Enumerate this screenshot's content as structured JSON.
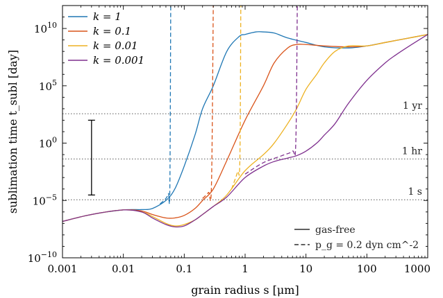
{
  "chart_data": {
    "type": "line",
    "xlabel": "grain radius s [μm]",
    "ylabel": "sublimation time t_subl [day]",
    "x_scale": "log",
    "y_scale": "log",
    "xlim": [
      0.001,
      1000
    ],
    "ylim": [
      1e-10,
      1000000000000.0
    ],
    "x_ticks": [
      {
        "v": 0.001,
        "label": "0.001"
      },
      {
        "v": 0.01,
        "label": "0.01"
      },
      {
        "v": 0.1,
        "label": "0.1"
      },
      {
        "v": 1,
        "label": "1"
      },
      {
        "v": 10,
        "label": "10"
      },
      {
        "v": 100,
        "label": "100"
      },
      {
        "v": 1000,
        "label": "1000"
      }
    ],
    "y_ticks": [
      {
        "v": 1e-10,
        "base": "10",
        "exp": "−10"
      },
      {
        "v": 1e-05,
        "base": "10",
        "exp": "−5"
      },
      {
        "v": 1,
        "base": "10",
        "exp": "0"
      },
      {
        "v": 100000.0,
        "base": "10",
        "exp": "5"
      },
      {
        "v": 10000000000.0,
        "base": "10",
        "exp": "10"
      }
    ],
    "reference_lines": [
      {
        "label": "1 yr",
        "y": 365
      },
      {
        "label": "1 hr",
        "y": 0.04167
      },
      {
        "label": "1 s",
        "y": 1.157e-05
      }
    ],
    "error_bar": {
      "x": 0.003,
      "y_low": 3e-05,
      "y_high": 100.0
    },
    "series": [
      {
        "name": "k = 1",
        "color": "#1f77b4",
        "gas_free": [
          [
            0.001,
            1.5e-07
          ],
          [
            0.003,
            6e-07
          ],
          [
            0.01,
            1.5e-06
          ],
          [
            0.02,
            1.6e-06
          ],
          [
            0.03,
            2e-06
          ],
          [
            0.05,
            1e-05
          ],
          [
            0.07,
            0.0001
          ],
          [
            0.1,
            0.01
          ],
          [
            0.15,
            5
          ],
          [
            0.2,
            1000.0
          ],
          [
            0.3,
            100000.0
          ],
          [
            0.5,
            100000000.0
          ],
          [
            0.8,
            2000000000.0
          ],
          [
            1,
            3000000000.0
          ],
          [
            1.5,
            5000000000.0
          ],
          [
            2,
            5000000000.0
          ],
          [
            3,
            4000000000.0
          ],
          [
            5,
            1500000000.0
          ],
          [
            10,
            600000000.0
          ],
          [
            20,
            250000000.0
          ],
          [
            50,
            200000000.0
          ],
          [
            100,
            300000000.0
          ],
          [
            200,
            600000000.0
          ],
          [
            500,
            1500000000.0
          ],
          [
            1000,
            3000000000.0
          ]
        ],
        "gas": [
          [
            0.04,
            5e-06
          ],
          [
            0.05,
            1.5e-05
          ],
          [
            0.055,
            4e-05
          ],
          [
            0.058,
            0.0001
          ],
          [
            0.06,
            1000000000000.0
          ]
        ]
      },
      {
        "name": "k = 0.1",
        "color": "#d95319",
        "gas_free": [
          [
            0.001,
            1.5e-07
          ],
          [
            0.003,
            6e-07
          ],
          [
            0.01,
            1.5e-06
          ],
          [
            0.02,
            1.2e-06
          ],
          [
            0.03,
            6e-07
          ],
          [
            0.05,
            3e-07
          ],
          [
            0.07,
            3e-07
          ],
          [
            0.1,
            5e-07
          ],
          [
            0.15,
            2e-06
          ],
          [
            0.2,
            1e-05
          ],
          [
            0.3,
            0.0001
          ],
          [
            0.5,
            0.03
          ],
          [
            1,
            100.0
          ],
          [
            2,
            100000.0
          ],
          [
            3,
            10000000.0
          ],
          [
            5,
            200000000.0
          ],
          [
            7,
            400000000.0
          ],
          [
            10,
            400000000.0
          ],
          [
            20,
            300000000.0
          ],
          [
            50,
            250000000.0
          ],
          [
            100,
            300000000.0
          ],
          [
            200,
            600000000.0
          ],
          [
            500,
            1500000000.0
          ],
          [
            1000,
            3000000000.0
          ]
        ],
        "gas": [
          [
            0.2,
            1.5e-05
          ],
          [
            0.25,
            5e-05
          ],
          [
            0.28,
            0.0002
          ],
          [
            0.3,
            1000000000000.0
          ]
        ]
      },
      {
        "name": "k = 0.01",
        "color": "#edb120",
        "gas_free": [
          [
            0.001,
            1.5e-07
          ],
          [
            0.003,
            6e-07
          ],
          [
            0.01,
            1.5e-06
          ],
          [
            0.02,
            1e-06
          ],
          [
            0.03,
            4e-07
          ],
          [
            0.05,
            1e-07
          ],
          [
            0.07,
            6e-08
          ],
          [
            0.1,
            8e-08
          ],
          [
            0.15,
            2e-07
          ],
          [
            0.2,
            6e-07
          ],
          [
            0.3,
            3e-06
          ],
          [
            0.5,
            3e-05
          ],
          [
            1,
            0.004
          ],
          [
            2,
            0.1
          ],
          [
            3,
            1
          ],
          [
            5,
            50
          ],
          [
            7,
            1000.0
          ],
          [
            10,
            50000.0
          ],
          [
            15,
            1000000.0
          ],
          [
            20,
            10000000.0
          ],
          [
            30,
            100000000.0
          ],
          [
            50,
            300000000.0
          ],
          [
            100,
            300000000.0
          ],
          [
            200,
            600000000.0
          ],
          [
            500,
            1500000000.0
          ],
          [
            1000,
            3000000000.0
          ]
        ],
        "gas": [
          [
            0.6,
            0.0001
          ],
          [
            0.75,
            0.003
          ],
          [
            0.82,
            0.03
          ],
          [
            0.85,
            1000000000000.0
          ]
        ]
      },
      {
        "name": "k = 0.001",
        "color": "#7e2f8e",
        "gas_free": [
          [
            0.001,
            1.5e-07
          ],
          [
            0.003,
            6e-07
          ],
          [
            0.01,
            1.5e-06
          ],
          [
            0.02,
            1e-06
          ],
          [
            0.03,
            3e-07
          ],
          [
            0.05,
            8e-08
          ],
          [
            0.07,
            5e-08
          ],
          [
            0.1,
            6e-08
          ],
          [
            0.15,
            2e-07
          ],
          [
            0.2,
            6e-07
          ],
          [
            0.3,
            3e-06
          ],
          [
            0.5,
            2e-05
          ],
          [
            1,
            0.001
          ],
          [
            2,
            0.01
          ],
          [
            3,
            0.025
          ],
          [
            5,
            0.05
          ],
          [
            7,
            0.08
          ],
          [
            10,
            0.2
          ],
          [
            15,
            1
          ],
          [
            20,
            5
          ],
          [
            30,
            50
          ],
          [
            50,
            3000.0
          ],
          [
            100,
            300000.0
          ],
          [
            200,
            10000000.0
          ],
          [
            300,
            50000000.0
          ],
          [
            500,
            300000000.0
          ],
          [
            1000,
            3000000000.0
          ]
        ],
        "gas": [
          [
            1,
            0.002
          ],
          [
            2,
            0.02
          ],
          [
            4,
            0.08
          ],
          [
            6,
            0.2
          ],
          [
            6.8,
            1
          ],
          [
            7.2,
            1000000000000.0
          ]
        ]
      }
    ],
    "legend": {
      "placement": "top-left",
      "entries": [
        "k = 1",
        "k = 0.1",
        "k = 0.01",
        "k = 0.001"
      ]
    },
    "linestyle_legend": {
      "placement": "bottom-right",
      "entries": [
        {
          "style": "solid",
          "label": "gas-free"
        },
        {
          "style": "dashed",
          "label": "p_g = 0.2 dyn cm^-2"
        }
      ]
    }
  }
}
